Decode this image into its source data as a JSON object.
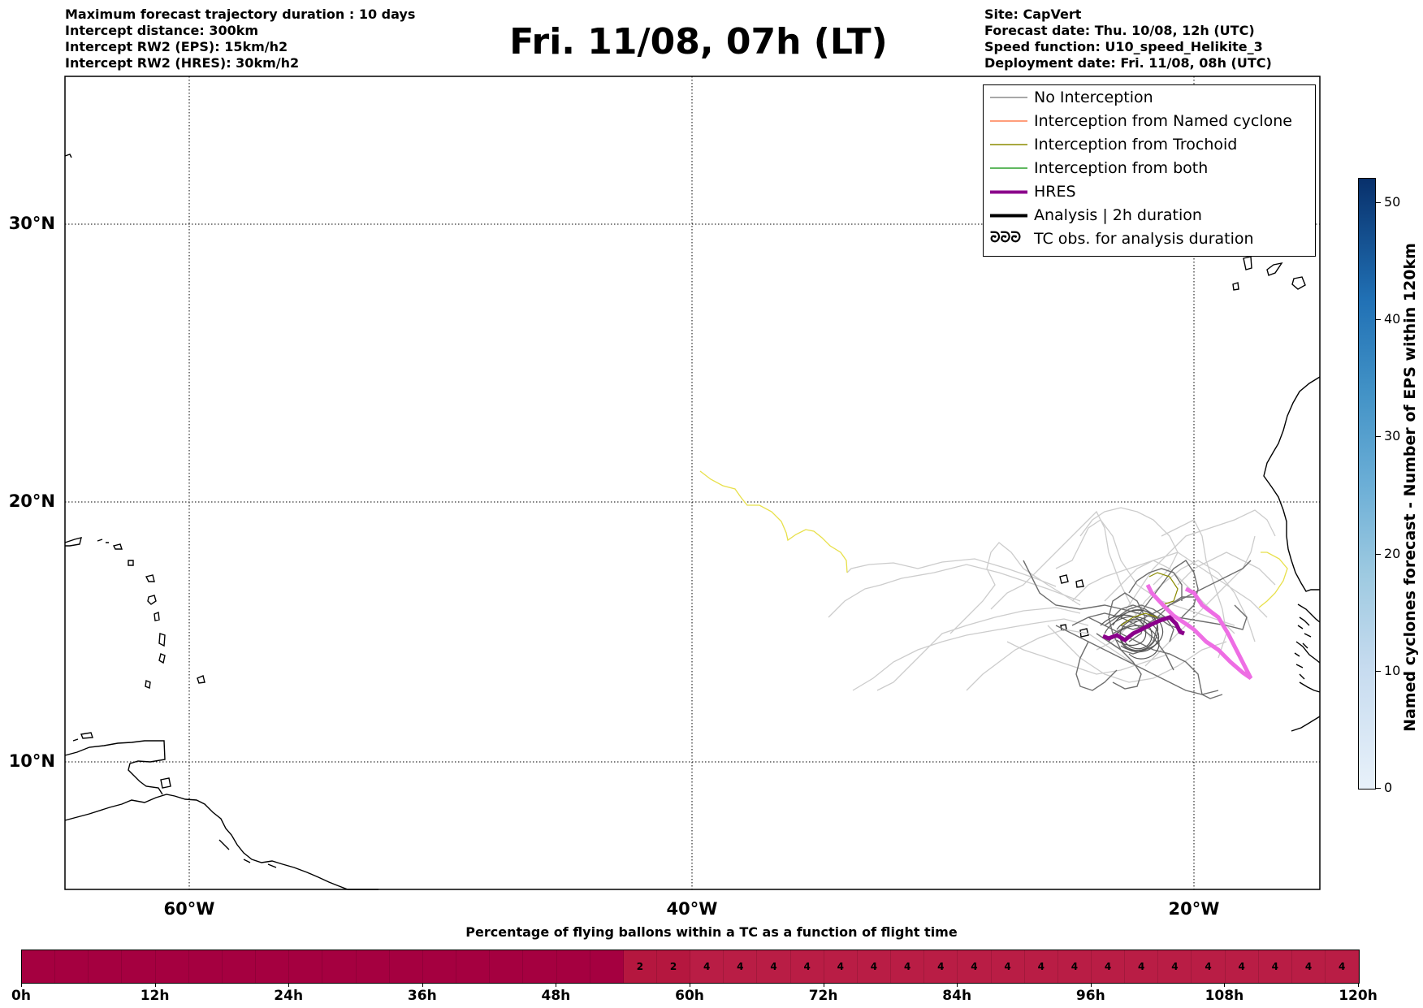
{
  "header": {
    "left_lines": [
      "Maximum forecast trajectory duration : 10 days",
      "Intercept distance: 300km",
      "Intercept RW2 (EPS):  15km/h2",
      "Intercept RW2 (HRES): 30km/h2"
    ],
    "title": "Fri. 11/08, 07h (LT)",
    "right_lines": [
      "Site: CapVert",
      "Forecast date: Thu. 10/08, 12h (UTC)",
      "Speed function: U10_speed_Helikite_3",
      "Deployment date: Fri. 11/08, 08h (UTC)"
    ]
  },
  "map": {
    "lat_labels": [
      "30°N",
      "20°N",
      "10°N"
    ],
    "lon_labels": [
      "60°W",
      "40°W",
      "20°W"
    ]
  },
  "legend": {
    "items": [
      {
        "label": "No Interception",
        "color": "#8c8c8c"
      },
      {
        "label": "Interception from Named cyclone",
        "color": "#ff7f50"
      },
      {
        "label": "Interception from Trochoid",
        "color": "#8b8b00"
      },
      {
        "label": "Interception from both",
        "color": "#2ca02c"
      },
      {
        "label": "HRES",
        "color": "#8b008b"
      },
      {
        "label": "Analysis | 2h duration",
        "color": "#000000"
      },
      {
        "label": "TC obs. for analysis duration",
        "icon": "cyclone-symbol-icon",
        "symbol": "ᘒᘒᘒ"
      }
    ]
  },
  "colorbar": {
    "title": "Named cyclones forecast - Number of EPS within 120km",
    "ticks": [
      "0",
      "10",
      "20",
      "30",
      "40",
      "50"
    ],
    "max": 52
  },
  "percentage_bar": {
    "title": "Percentage of flying ballons within a TC as a function of flight time",
    "time_labels": [
      "0h",
      "12h",
      "24h",
      "36h",
      "48h",
      "60h",
      "72h",
      "84h",
      "96h",
      "108h",
      "120h"
    ],
    "cells": [
      "",
      "",
      "",
      "",
      "",
      "",
      "",
      "",
      "",
      "",
      "",
      "",
      "",
      "",
      "",
      "",
      "",
      "",
      "2",
      "2",
      "4",
      "4",
      "4",
      "4",
      "4",
      "4",
      "4",
      "4",
      "4",
      "4",
      "4",
      "4",
      "4",
      "4",
      "4",
      "4",
      "4",
      "4",
      "4",
      "4"
    ],
    "colors": {
      "zero": "#a50040",
      "low": "#b5173f",
      "mid": "#b91d45"
    }
  }
}
